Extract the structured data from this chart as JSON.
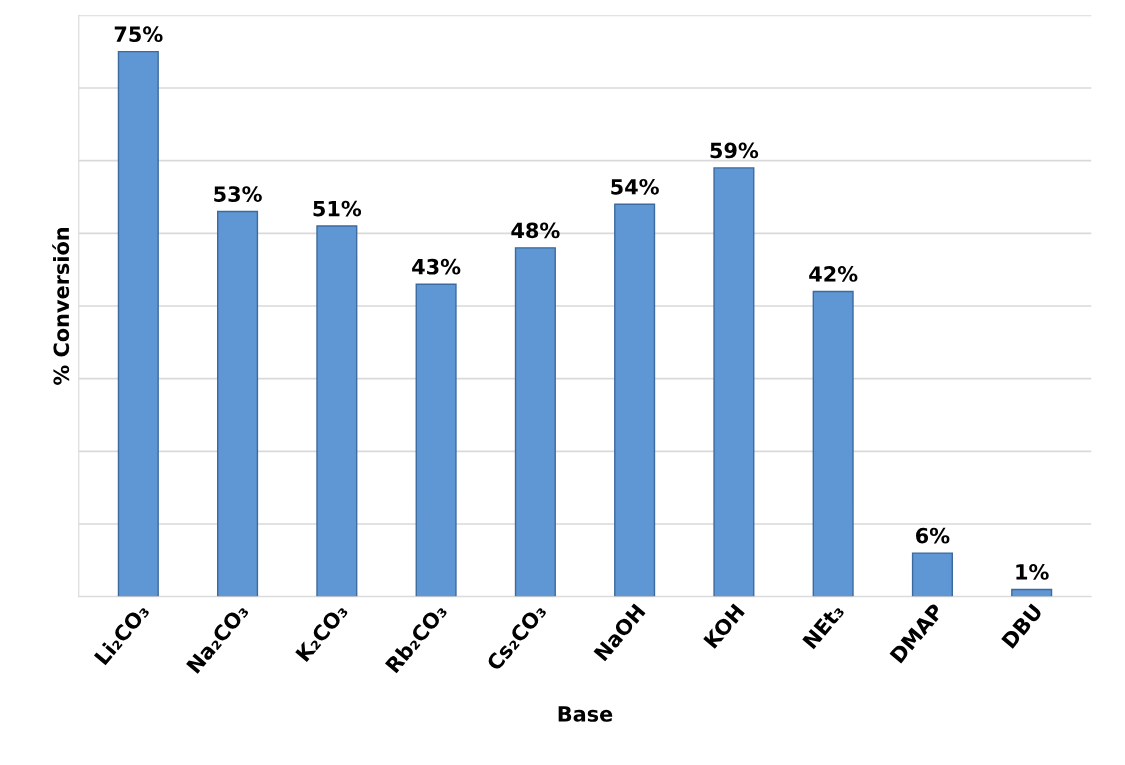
{
  "chart_data": {
    "type": "bar",
    "xlabel": "Base",
    "ylabel": "% Conversión",
    "categories": [
      "Li₂CO₃",
      "Na₂CO₃",
      "K₂CO₃",
      "Rb₂CO₃",
      "Cs₂CO₃",
      "NaOH",
      "KOH",
      "NEt₃",
      "DMAP",
      "DBU"
    ],
    "values": [
      75,
      53,
      51,
      43,
      48,
      54,
      59,
      42,
      6,
      1
    ],
    "value_labels": [
      "75%",
      "53%",
      "51%",
      "43%",
      "48%",
      "54%",
      "59%",
      "42%",
      "6%",
      "1%"
    ],
    "color": "#5f96d4",
    "ylim": [
      0,
      80
    ],
    "yticks": [
      {
        "value": 0,
        "label": null
      },
      {
        "value": 10,
        "label": null
      },
      {
        "value": 20,
        "label": null
      },
      {
        "value": 30,
        "label": null
      },
      {
        "value": 40,
        "label": null
      },
      {
        "value": 50,
        "label": null
      },
      {
        "value": 60,
        "label": null
      },
      {
        "value": 70,
        "label": null
      },
      {
        "value": 80,
        "label": null
      }
    ],
    "grid": "y",
    "tick_labels": "x"
  }
}
